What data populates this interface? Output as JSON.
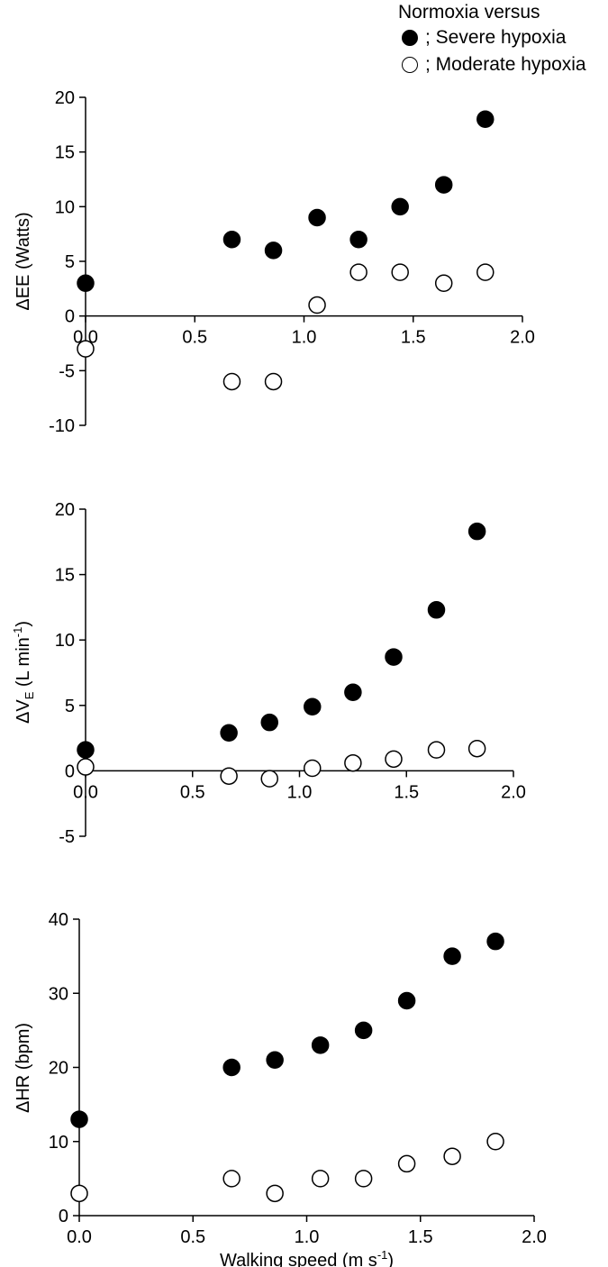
{
  "legend": {
    "title": "Normoxia versus",
    "entries": [
      {
        "label": "; Severe hypoxia",
        "marker": "filled-circle"
      },
      {
        "label": "; Moderate hypoxia",
        "marker": "open-circle"
      }
    ]
  },
  "chart_data": [
    {
      "type": "scatter",
      "ylabel": "ΔEE (Watts)",
      "xlabel": "",
      "xlim": [
        0,
        2.0
      ],
      "ylim": [
        -10,
        20
      ],
      "xticks": [
        "0.0",
        "0.5",
        "1.0",
        "1.5",
        "2.0"
      ],
      "yticks": [
        "-10",
        "-5",
        "0",
        "5",
        "10",
        "15",
        "20"
      ],
      "x_axis_at": "y=0",
      "grid": false,
      "series": [
        {
          "name": "Severe hypoxia",
          "marker": "filled",
          "points": [
            [
              0.0,
              3
            ],
            [
              0.67,
              7
            ],
            [
              0.86,
              6
            ],
            [
              1.06,
              9
            ],
            [
              1.25,
              7
            ],
            [
              1.44,
              10
            ],
            [
              1.64,
              12
            ],
            [
              1.83,
              18
            ]
          ]
        },
        {
          "name": "Moderate hypoxia",
          "marker": "open",
          "points": [
            [
              0.0,
              -3
            ],
            [
              0.67,
              -6
            ],
            [
              0.86,
              -6
            ],
            [
              1.06,
              1
            ],
            [
              1.25,
              4
            ],
            [
              1.44,
              4
            ],
            [
              1.64,
              3
            ],
            [
              1.83,
              4
            ]
          ]
        }
      ]
    },
    {
      "type": "scatter",
      "ylabel_parts": {
        "prefix": "ΔV",
        "sub": "E",
        "mid": " (L min",
        "sup": "-1",
        "suffix": ")"
      },
      "xlabel": "",
      "xlim": [
        0,
        2.0
      ],
      "ylim": [
        -5,
        20
      ],
      "xticks": [
        "0.0",
        "0.5",
        "1.0",
        "1.5",
        "2.0"
      ],
      "yticks": [
        "-5",
        "0",
        "5",
        "10",
        "15",
        "20"
      ],
      "x_axis_at": "y=0",
      "grid": false,
      "series": [
        {
          "name": "Severe hypoxia",
          "marker": "filled",
          "points": [
            [
              0.0,
              1.6
            ],
            [
              0.67,
              2.9
            ],
            [
              0.86,
              3.7
            ],
            [
              1.06,
              4.9
            ],
            [
              1.25,
              6.0
            ],
            [
              1.44,
              8.7
            ],
            [
              1.64,
              12.3
            ],
            [
              1.83,
              18.3
            ]
          ]
        },
        {
          "name": "Moderate hypoxia",
          "marker": "open",
          "points": [
            [
              0.0,
              0.3
            ],
            [
              0.67,
              -0.4
            ],
            [
              0.86,
              -0.6
            ],
            [
              1.06,
              0.2
            ],
            [
              1.25,
              0.6
            ],
            [
              1.44,
              0.9
            ],
            [
              1.64,
              1.6
            ],
            [
              1.83,
              1.7
            ]
          ]
        }
      ]
    },
    {
      "type": "scatter",
      "ylabel": "ΔHR (bpm)",
      "xlabel_parts": {
        "prefix": "Walking speed (m s",
        "sup": "-1",
        "suffix": ")"
      },
      "xlim": [
        0,
        2.0
      ],
      "ylim": [
        0,
        40
      ],
      "xticks": [
        "0.0",
        "0.5",
        "1.0",
        "1.5",
        "2.0"
      ],
      "yticks": [
        "0",
        "10",
        "20",
        "30",
        "40"
      ],
      "x_axis_at": "y=0",
      "grid": false,
      "series": [
        {
          "name": "Severe hypoxia",
          "marker": "filled",
          "points": [
            [
              0.0,
              13
            ],
            [
              0.67,
              20
            ],
            [
              0.86,
              21
            ],
            [
              1.06,
              23
            ],
            [
              1.25,
              25
            ],
            [
              1.44,
              29
            ],
            [
              1.64,
              35
            ],
            [
              1.83,
              37
            ]
          ]
        },
        {
          "name": "Moderate hypoxia",
          "marker": "open",
          "points": [
            [
              0.0,
              3
            ],
            [
              0.67,
              5
            ],
            [
              0.86,
              3
            ],
            [
              1.06,
              5
            ],
            [
              1.25,
              5
            ],
            [
              1.44,
              7
            ],
            [
              1.64,
              8
            ],
            [
              1.83,
              10
            ]
          ]
        }
      ]
    }
  ]
}
